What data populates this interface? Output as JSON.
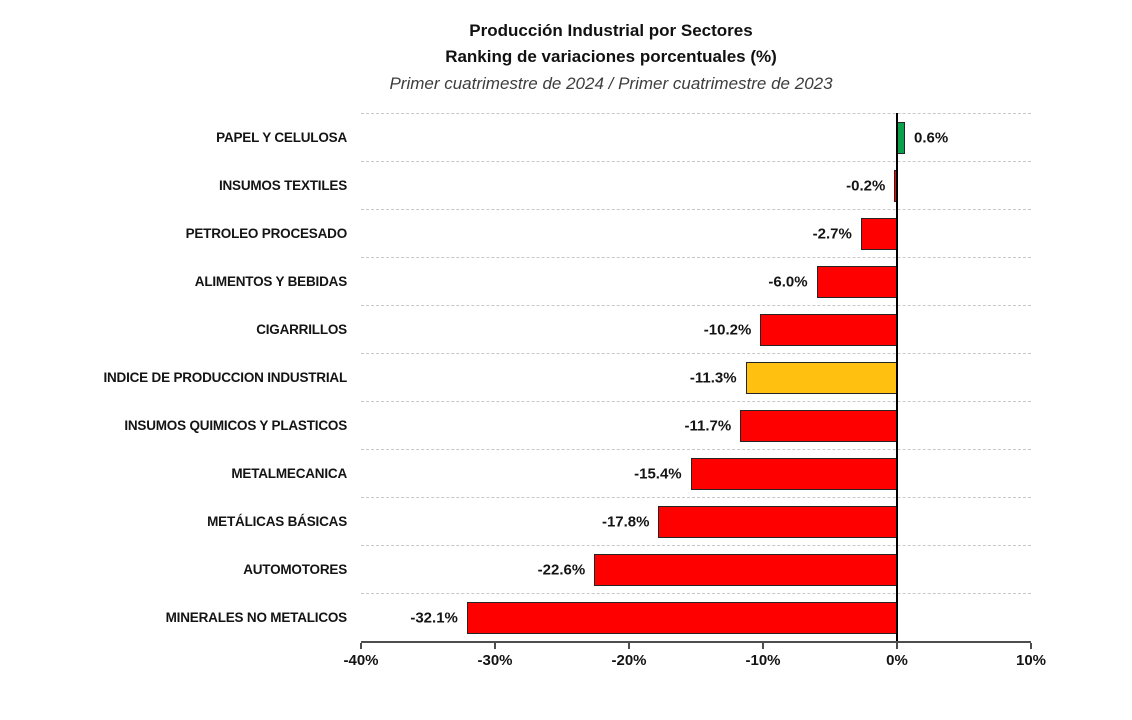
{
  "chart_data": {
    "type": "bar",
    "orientation": "horizontal",
    "title": "Producción Industrial por Sectores",
    "subtitle": "Ranking de variaciones porcentuales (%)",
    "period": "Primer cuatrimestre de 2024 / Primer cuatrimestre de 2023",
    "categories": [
      "PAPEL Y CELULOSA",
      "INSUMOS TEXTILES",
      "PETROLEO PROCESADO",
      "ALIMENTOS Y BEBIDAS",
      "CIGARRILLOS",
      "INDICE DE PRODUCCION INDUSTRIAL",
      "INSUMOS QUIMICOS Y PLASTICOS",
      "METALMECANICA",
      "METÁLICAS BÁSICAS",
      "AUTOMOTORES",
      "MINERALES NO METALICOS"
    ],
    "values": [
      0.6,
      -0.2,
      -2.7,
      -6.0,
      -10.2,
      -11.3,
      -11.7,
      -15.4,
      -17.8,
      -22.6,
      -32.1
    ],
    "value_labels": [
      "0.6%",
      "-0.2%",
      "-2.7%",
      "-6.0%",
      "-10.2%",
      "-11.3%",
      "-11.7%",
      "-15.4%",
      "-17.8%",
      "-22.6%",
      "-32.1%"
    ],
    "bar_colors": [
      "#0AA14C",
      "#FF0000",
      "#FF0000",
      "#FF0000",
      "#FF0000",
      "#FFC010",
      "#FF0000",
      "#FF0000",
      "#FF0000",
      "#FF0000",
      "#FF0000"
    ],
    "xlim": [
      -40,
      10
    ],
    "x_ticks": [
      "-40%",
      "-30%",
      "-20%",
      "-10%",
      "0%",
      "10%"
    ],
    "grid": "row-boundaries-dashed",
    "legend": "none",
    "colors": {
      "positive": "#0AA14C",
      "negative": "#FF0000",
      "highlight_index_bar": "#FFC010",
      "bar_border": "#252525",
      "zero_line": "#000000",
      "axis_line": "#4d4d4d",
      "gridline": "#c8c8c8",
      "title_text": "#111111",
      "subtitle_text": "#3d3d3d"
    }
  }
}
